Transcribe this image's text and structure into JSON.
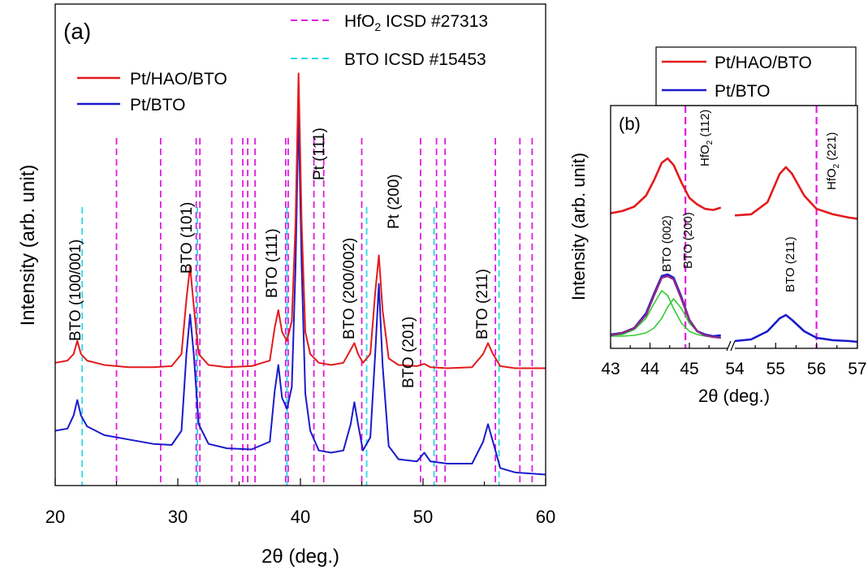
{
  "chart_data": [
    {
      "panel_label": "(a)",
      "type": "line",
      "xlabel": "2θ (deg.)",
      "ylabel": "Intensity (arb. unit)",
      "xlim": [
        20,
        60
      ],
      "xticks": [
        20,
        30,
        40,
        50,
        60
      ],
      "series": [
        {
          "name": "Pt/HAO/BTO",
          "color": "#e31a1c",
          "x": [
            20,
            21,
            21.5,
            21.8,
            22.1,
            22.6,
            24,
            26,
            28,
            29.5,
            30.3,
            30.7,
            31.0,
            31.3,
            31.7,
            32.5,
            34,
            36,
            37.5,
            37.9,
            38.2,
            38.5,
            38.9,
            39.3,
            39.6,
            39.85,
            40.1,
            40.4,
            40.8,
            41.5,
            42.5,
            43.5,
            44.1,
            44.4,
            44.7,
            45.1,
            45.7,
            46.1,
            46.4,
            46.7,
            47.2,
            48,
            49.5,
            50.1,
            50.6,
            52,
            54,
            54.9,
            55.3,
            55.7,
            56.3,
            57.5,
            60
          ],
          "y": [
            0.56,
            0.57,
            0.6,
            0.66,
            0.6,
            0.57,
            0.55,
            0.54,
            0.54,
            0.545,
            0.6,
            0.85,
            1.0,
            0.82,
            0.6,
            0.55,
            0.54,
            0.545,
            0.57,
            0.72,
            0.8,
            0.7,
            0.66,
            0.75,
            1.2,
            1.88,
            1.2,
            0.7,
            0.6,
            0.56,
            0.55,
            0.56,
            0.62,
            0.65,
            0.6,
            0.56,
            0.6,
            0.88,
            1.05,
            0.8,
            0.58,
            0.55,
            0.545,
            0.555,
            0.54,
            0.535,
            0.54,
            0.6,
            0.65,
            0.6,
            0.545,
            0.535,
            0.535
          ]
        },
        {
          "name": "Pt/BTO",
          "color": "#1a1acc",
          "x": [
            20,
            21,
            21.5,
            21.8,
            22.1,
            22.6,
            24,
            26,
            28,
            29.5,
            30.3,
            30.7,
            31.0,
            31.3,
            31.7,
            32.5,
            34,
            36,
            37.5,
            37.9,
            38.2,
            38.5,
            38.9,
            39.3,
            39.6,
            39.85,
            40.1,
            40.4,
            40.8,
            41.5,
            42.5,
            43.5,
            44.1,
            44.4,
            44.7,
            45.1,
            45.7,
            46.1,
            46.4,
            46.7,
            47.2,
            48,
            49.5,
            50.1,
            50.6,
            52,
            54,
            54.9,
            55.3,
            55.7,
            56.3,
            57.5,
            60
          ],
          "y": [
            0.25,
            0.26,
            0.32,
            0.39,
            0.32,
            0.27,
            0.23,
            0.21,
            0.19,
            0.185,
            0.25,
            0.6,
            0.78,
            0.6,
            0.28,
            0.19,
            0.17,
            0.165,
            0.2,
            0.43,
            0.55,
            0.4,
            0.35,
            0.45,
            1.0,
            1.7,
            1.0,
            0.42,
            0.25,
            0.16,
            0.15,
            0.16,
            0.28,
            0.38,
            0.28,
            0.16,
            0.22,
            0.6,
            0.92,
            0.55,
            0.18,
            0.12,
            0.11,
            0.15,
            0.11,
            0.1,
            0.1,
            0.2,
            0.28,
            0.2,
            0.08,
            0.06,
            0.05
          ]
        }
      ],
      "reference_lines": [
        {
          "name": "HfO2 ICSD #27313",
          "color": "#e01be0",
          "x": [
            25.0,
            28.6,
            31.5,
            31.8,
            34.4,
            35.3,
            35.7,
            36.3,
            38.8,
            39.0,
            41.1,
            41.9,
            45.0,
            49.8,
            51.1,
            51.8,
            55.9,
            57.9,
            58.9
          ]
        },
        {
          "name": "BTO ICSD #15453",
          "color": "#2ad8e6",
          "x": [
            22.2,
            31.6,
            38.9,
            45.4,
            50.9,
            56.2
          ]
        }
      ],
      "legend_series": [
        "Pt/HAO/BTO",
        "Pt/BTO"
      ],
      "annotations": [
        "BTO (100/001)",
        "BTO (101)",
        "BTO (111)",
        "Pt (111)",
        "BTO (200/002)",
        "Pt (200)",
        "BTO (201)",
        "BTO (211)"
      ]
    },
    {
      "panel_label": "(b)",
      "type": "line",
      "xlabel": "2θ (deg.)",
      "ylabel": "Intensity (arb. unit)",
      "x_segments": [
        [
          43,
          45.8
        ],
        [
          54,
          57
        ]
      ],
      "xticks": [
        43,
        44,
        45,
        54,
        55,
        56,
        57
      ],
      "series": [
        {
          "name": "Pt/HAO/BTO",
          "color": "#e31a1c",
          "x": [
            43.0,
            43.3,
            43.6,
            43.9,
            44.1,
            44.3,
            44.45,
            44.6,
            44.8,
            45.0,
            45.2,
            45.4,
            45.6,
            45.8,
            null,
            54.0,
            54.4,
            54.8,
            55.1,
            55.25,
            55.4,
            55.7,
            56.0,
            56.4,
            56.8,
            57.0
          ],
          "y": [
            0.62,
            0.63,
            0.65,
            0.7,
            0.77,
            0.85,
            0.87,
            0.84,
            0.76,
            0.69,
            0.66,
            0.64,
            0.635,
            0.645,
            null,
            0.61,
            0.615,
            0.67,
            0.8,
            0.83,
            0.8,
            0.7,
            0.64,
            0.615,
            0.6,
            0.595
          ]
        },
        {
          "name": "Pt/BTO",
          "color": "#1a1acc",
          "x": [
            43.0,
            43.3,
            43.6,
            43.9,
            44.1,
            44.3,
            44.45,
            44.6,
            44.8,
            45.0,
            45.2,
            45.4,
            45.6,
            45.8,
            null,
            54.0,
            54.4,
            54.8,
            55.1,
            55.25,
            55.4,
            55.7,
            56.0,
            56.4,
            56.8,
            57.0
          ],
          "y": [
            0.09,
            0.1,
            0.13,
            0.22,
            0.34,
            0.45,
            0.46,
            0.44,
            0.32,
            0.18,
            0.11,
            0.09,
            0.08,
            0.085,
            null,
            0.05,
            0.06,
            0.11,
            0.19,
            0.21,
            0.18,
            0.11,
            0.07,
            0.055,
            0.05,
            0.045
          ]
        },
        {
          "name": "Pt/BTO fit",
          "color": "#8a2a8a",
          "x": [
            43.0,
            43.3,
            43.6,
            43.9,
            44.1,
            44.3,
            44.45,
            44.6,
            44.8,
            45.0,
            45.2,
            45.4,
            45.6,
            45.8
          ],
          "y": [
            0.085,
            0.1,
            0.13,
            0.21,
            0.33,
            0.44,
            0.45,
            0.43,
            0.31,
            0.18,
            0.11,
            0.085,
            0.075,
            0.07
          ]
        },
        {
          "name": "BTO (002) component",
          "color": "#33cc33",
          "x": [
            43.0,
            43.3,
            43.6,
            43.9,
            44.1,
            44.3,
            44.45,
            44.6,
            44.8,
            45.0,
            45.2,
            45.4,
            45.6,
            45.8
          ],
          "y": [
            0.085,
            0.09,
            0.12,
            0.19,
            0.28,
            0.36,
            0.33,
            0.25,
            0.16,
            0.11,
            0.09,
            0.08,
            0.075,
            0.07
          ]
        },
        {
          "name": "BTO (200) component",
          "color": "#33cc33",
          "x": [
            43.0,
            43.3,
            43.6,
            43.9,
            44.1,
            44.3,
            44.45,
            44.6,
            44.8,
            45.0,
            45.2,
            45.4,
            45.6,
            45.8
          ],
          "y": [
            0.08,
            0.08,
            0.085,
            0.1,
            0.13,
            0.19,
            0.26,
            0.31,
            0.25,
            0.16,
            0.11,
            0.085,
            0.075,
            0.07
          ]
        }
      ],
      "reference_lines": [
        {
          "name": "HfO2 (112)",
          "color": "#e01be0",
          "x": [
            44.9
          ]
        },
        {
          "name": "HfO2 (221)",
          "color": "#e01be0",
          "x": [
            56.0
          ]
        }
      ],
      "legend_series": [
        "Pt/HAO/BTO",
        "Pt/BTO"
      ],
      "annotations": [
        "BTO (002)",
        "BTO (200)",
        "BTO (211)",
        "HfO2 (112)",
        "HfO2 (221)"
      ]
    }
  ]
}
